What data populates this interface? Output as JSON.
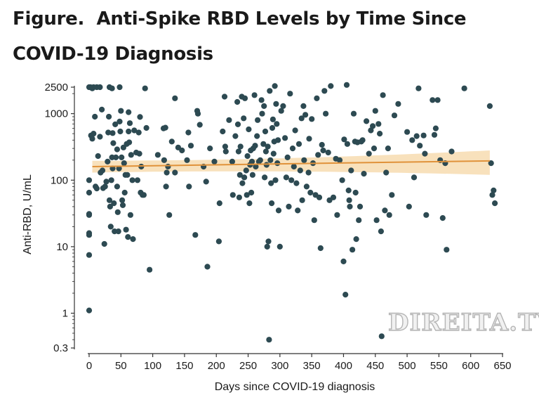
{
  "figure": {
    "label": "Figure.",
    "title": "Anti-Spike RBD Levels by Time Since COVID-19 Diagnosis"
  },
  "watermark": "DIREITA.TV",
  "chart_data": {
    "type": "scatter",
    "xlabel": "Days since COVID-19 diagnosis",
    "ylabel": "Anti-RBD, U/mL",
    "xlim": [
      -10,
      650
    ],
    "ylim": [
      0.3,
      2900
    ],
    "y_scale": "log",
    "x_ticks": [
      0,
      50,
      100,
      150,
      200,
      250,
      300,
      350,
      400,
      450,
      500,
      550,
      600,
      650
    ],
    "y_ticks": [
      {
        "value": 0.3,
        "label": "0.3"
      },
      {
        "value": 1,
        "label": "1"
      },
      {
        "value": 10,
        "label": "10"
      },
      {
        "value": 100,
        "label": "100"
      },
      {
        "value": 1000,
        "label": "1000"
      },
      {
        "value": 2500,
        "label": "2500"
      }
    ],
    "point_color": "#2d4a52",
    "trend_color": "#e0923a",
    "band_color": "#f7dcb0",
    "trend": {
      "x": [
        5,
        630
      ],
      "y": [
        160,
        195
      ]
    },
    "band": {
      "x": [
        5,
        630
      ],
      "lower": [
        130,
        120
      ],
      "upper": [
        195,
        280
      ]
    },
    "points": [
      [
        0,
        2500
      ],
      [
        2,
        2500
      ],
      [
        5,
        2400
      ],
      [
        7,
        2500
      ],
      [
        12,
        2500
      ],
      [
        17,
        2500
      ],
      [
        32,
        2500
      ],
      [
        36,
        2400
      ],
      [
        48,
        2500
      ],
      [
        88,
        2400
      ],
      [
        0,
        1.1
      ],
      [
        0,
        7.5
      ],
      [
        0,
        15
      ],
      [
        0,
        16
      ],
      [
        0,
        30
      ],
      [
        0,
        31
      ],
      [
        0,
        65
      ],
      [
        0,
        100
      ],
      [
        3,
        470
      ],
      [
        5,
        420
      ],
      [
        7,
        500
      ],
      [
        9,
        900
      ],
      [
        10,
        80
      ],
      [
        12,
        75
      ],
      [
        14,
        230
      ],
      [
        17,
        450
      ],
      [
        18,
        130
      ],
      [
        20,
        1150
      ],
      [
        21,
        140
      ],
      [
        22,
        76
      ],
      [
        24,
        11
      ],
      [
        25,
        80
      ],
      [
        27,
        95
      ],
      [
        29,
        190
      ],
      [
        30,
        520
      ],
      [
        31,
        900
      ],
      [
        32,
        50
      ],
      [
        33,
        40
      ],
      [
        34,
        20
      ],
      [
        35,
        100
      ],
      [
        36,
        220
      ],
      [
        37,
        510
      ],
      [
        37,
        150
      ],
      [
        38,
        360
      ],
      [
        39,
        45
      ],
      [
        40,
        17
      ],
      [
        41,
        690
      ],
      [
        42,
        220
      ],
      [
        44,
        290
      ],
      [
        44,
        80
      ],
      [
        45,
        33
      ],
      [
        46,
        17
      ],
      [
        47,
        150
      ],
      [
        48,
        760
      ],
      [
        49,
        540
      ],
      [
        50,
        1100
      ],
      [
        51,
        220
      ],
      [
        52,
        50
      ],
      [
        53,
        42
      ],
      [
        54,
        310
      ],
      [
        55,
        180
      ],
      [
        56,
        65
      ],
      [
        57,
        120
      ],
      [
        58,
        18
      ],
      [
        59,
        350
      ],
      [
        60,
        120
      ],
      [
        61,
        14
      ],
      [
        62,
        1050
      ],
      [
        62,
        540
      ],
      [
        63,
        370
      ],
      [
        64,
        720
      ],
      [
        65,
        30
      ],
      [
        66,
        240
      ],
      [
        68,
        100
      ],
      [
        69,
        13
      ],
      [
        71,
        560
      ],
      [
        74,
        260
      ],
      [
        76,
        100
      ],
      [
        78,
        520
      ],
      [
        79,
        250
      ],
      [
        80,
        890
      ],
      [
        81,
        65
      ],
      [
        82,
        160
      ],
      [
        84,
        60
      ],
      [
        86,
        60
      ],
      [
        90,
        610
      ],
      [
        95,
        4.5
      ],
      [
        108,
        240
      ],
      [
        117,
        600
      ],
      [
        118,
        200
      ],
      [
        120,
        615
      ],
      [
        121,
        80
      ],
      [
        122,
        130
      ],
      [
        124,
        160
      ],
      [
        126,
        30
      ],
      [
        130,
        380
      ],
      [
        135,
        130
      ],
      [
        135,
        1700
      ],
      [
        140,
        310
      ],
      [
        146,
        280
      ],
      [
        154,
        200
      ],
      [
        156,
        520
      ],
      [
        157,
        80
      ],
      [
        160,
        330
      ],
      [
        167,
        15
      ],
      [
        170,
        1100
      ],
      [
        171,
        1000
      ],
      [
        174,
        680
      ],
      [
        180,
        160
      ],
      [
        184,
        95
      ],
      [
        186,
        5
      ],
      [
        190,
        300
      ],
      [
        197,
        190
      ],
      [
        204,
        12
      ],
      [
        205,
        45
      ],
      [
        210,
        540
      ],
      [
        213,
        1800
      ],
      [
        214,
        320
      ],
      [
        215,
        270
      ],
      [
        220,
        800
      ],
      [
        225,
        190
      ],
      [
        226,
        60
      ],
      [
        230,
        460
      ],
      [
        233,
        1500
      ],
      [
        234,
        690
      ],
      [
        235,
        270
      ],
      [
        236,
        55
      ],
      [
        237,
        120
      ],
      [
        238,
        320
      ],
      [
        240,
        1800
      ],
      [
        241,
        90
      ],
      [
        243,
        850
      ],
      [
        244,
        110
      ],
      [
        245,
        1700
      ],
      [
        247,
        140
      ],
      [
        248,
        60
      ],
      [
        249,
        230
      ],
      [
        251,
        580
      ],
      [
        252,
        45
      ],
      [
        253,
        170
      ],
      [
        254,
        280
      ],
      [
        255,
        65
      ],
      [
        256,
        190
      ],
      [
        257,
        120
      ],
      [
        258,
        300
      ],
      [
        260,
        1900
      ],
      [
        261,
        330
      ],
      [
        262,
        160
      ],
      [
        264,
        460
      ],
      [
        265,
        800
      ],
      [
        267,
        190
      ],
      [
        269,
        200
      ],
      [
        271,
        1600
      ],
      [
        272,
        1000
      ],
      [
        274,
        350
      ],
      [
        275,
        1300
      ],
      [
        276,
        110
      ],
      [
        277,
        540
      ],
      [
        278,
        270
      ],
      [
        279,
        170
      ],
      [
        280,
        10
      ],
      [
        281,
        320
      ],
      [
        282,
        12
      ],
      [
        283,
        0.4
      ],
      [
        284,
        2200
      ],
      [
        285,
        200
      ],
      [
        286,
        90
      ],
      [
        287,
        45
      ],
      [
        288,
        610
      ],
      [
        289,
        820
      ],
      [
        290,
        250
      ],
      [
        291,
        380
      ],
      [
        292,
        2600
      ],
      [
        293,
        100
      ],
      [
        294,
        1400
      ],
      [
        295,
        700
      ],
      [
        296,
        180
      ],
      [
        297,
        400
      ],
      [
        298,
        35
      ],
      [
        300,
        10
      ],
      [
        302,
        1100
      ],
      [
        305,
        1300
      ],
      [
        308,
        430
      ],
      [
        310,
        110
      ],
      [
        312,
        220
      ],
      [
        314,
        40
      ],
      [
        316,
        2000
      ],
      [
        318,
        100
      ],
      [
        320,
        300
      ],
      [
        322,
        160
      ],
      [
        324,
        560
      ],
      [
        326,
        90
      ],
      [
        328,
        35
      ],
      [
        330,
        350
      ],
      [
        332,
        140
      ],
      [
        334,
        850
      ],
      [
        335,
        50
      ],
      [
        337,
        1300
      ],
      [
        338,
        200
      ],
      [
        340,
        960
      ],
      [
        342,
        80
      ],
      [
        345,
        130
      ],
      [
        346,
        420
      ],
      [
        348,
        65
      ],
      [
        350,
        830
      ],
      [
        352,
        180
      ],
      [
        354,
        25
      ],
      [
        356,
        60
      ],
      [
        358,
        1700
      ],
      [
        360,
        240
      ],
      [
        362,
        55
      ],
      [
        364,
        9.5
      ],
      [
        366,
        340
      ],
      [
        368,
        280
      ],
      [
        370,
        2200
      ],
      [
        372,
        1000
      ],
      [
        376,
        260
      ],
      [
        378,
        50
      ],
      [
        380,
        2600
      ],
      [
        384,
        55
      ],
      [
        388,
        210
      ],
      [
        390,
        30
      ],
      [
        394,
        200
      ],
      [
        398,
        100
      ],
      [
        400,
        6
      ],
      [
        401,
        410
      ],
      [
        403,
        1.9
      ],
      [
        405,
        2700
      ],
      [
        406,
        350
      ],
      [
        408,
        70
      ],
      [
        409,
        50
      ],
      [
        410,
        40
      ],
      [
        412,
        140
      ],
      [
        414,
        9
      ],
      [
        416,
        1000
      ],
      [
        418,
        380
      ],
      [
        419,
        65
      ],
      [
        420,
        13
      ],
      [
        422,
        370
      ],
      [
        424,
        25
      ],
      [
        426,
        40
      ],
      [
        428,
        380
      ],
      [
        430,
        400
      ],
      [
        432,
        125
      ],
      [
        436,
        770
      ],
      [
        440,
        250
      ],
      [
        443,
        560
      ],
      [
        446,
        650
      ],
      [
        448,
        300
      ],
      [
        450,
        1100
      ],
      [
        452,
        25
      ],
      [
        455,
        700
      ],
      [
        457,
        500
      ],
      [
        459,
        17
      ],
      [
        460,
        0.45
      ],
      [
        462,
        1900
      ],
      [
        465,
        35
      ],
      [
        467,
        130
      ],
      [
        470,
        300
      ],
      [
        472,
        30
      ],
      [
        476,
        60
      ],
      [
        480,
        940
      ],
      [
        486,
        1400
      ],
      [
        500,
        530
      ],
      [
        503,
        40
      ],
      [
        508,
        400
      ],
      [
        511,
        110
      ],
      [
        515,
        460
      ],
      [
        518,
        2400
      ],
      [
        520,
        330
      ],
      [
        526,
        470
      ],
      [
        528,
        250
      ],
      [
        530,
        30
      ],
      [
        540,
        1600
      ],
      [
        543,
        480
      ],
      [
        545,
        600
      ],
      [
        548,
        1600
      ],
      [
        552,
        200
      ],
      [
        556,
        27
      ],
      [
        560,
        180
      ],
      [
        562,
        9
      ],
      [
        570,
        270
      ],
      [
        590,
        2400
      ],
      [
        630,
        1300
      ],
      [
        632,
        180
      ],
      [
        634,
        60
      ],
      [
        636,
        70
      ],
      [
        638,
        45
      ]
    ]
  }
}
